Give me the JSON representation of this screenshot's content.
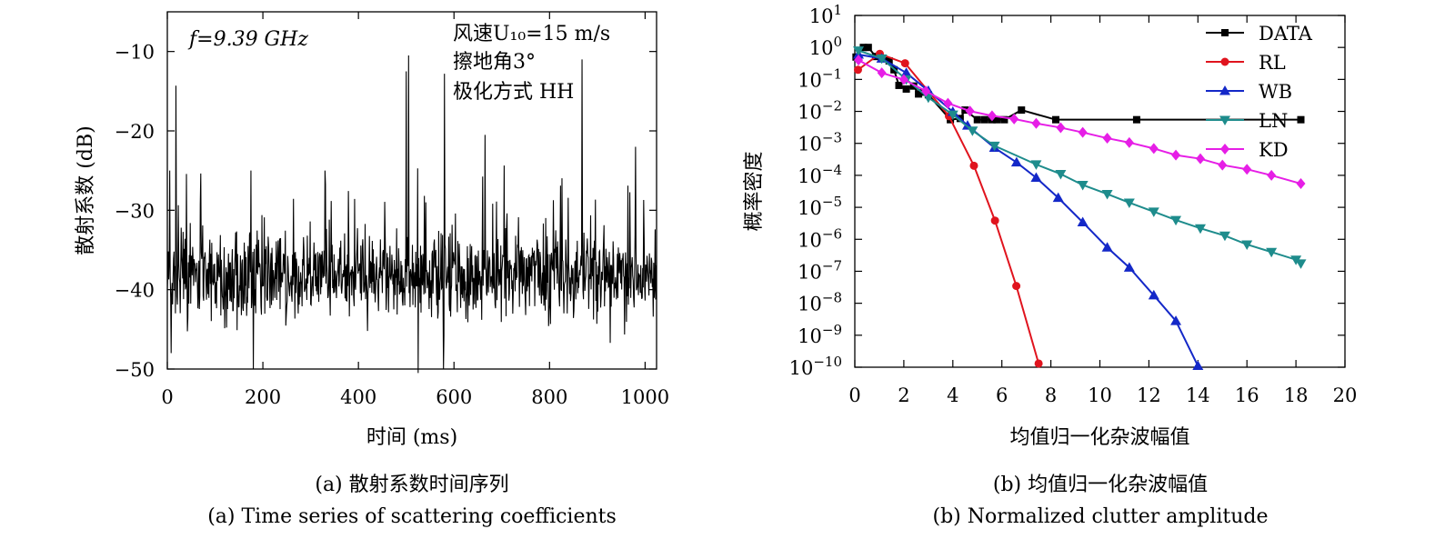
{
  "chart_data": [
    {
      "type": "line",
      "panel_caption_cn": "(a) 散射系数时间序列",
      "panel_caption_en": "(a) Time series of scattering coefficients",
      "xlabel": "时间 (ms)",
      "ylabel": "散射系数 (dB)",
      "xlim": [
        0,
        1024
      ],
      "ylim": [
        -50,
        -5
      ],
      "xticks": [
        0,
        200,
        400,
        600,
        800,
        1000
      ],
      "yticks": [
        -10,
        -20,
        -30,
        -40,
        -50
      ],
      "ytick_labels": [
        "−10",
        "−20",
        "−30",
        "−40",
        "−50"
      ],
      "annotations": {
        "freq": "f=9.39 GHz",
        "wind": "风速U₁₀=15 m/s",
        "angle": "擦地角3°",
        "pol": "极化方式 HH"
      },
      "series": [
        {
          "color": "#000000",
          "n_samples": 1024,
          "baseline_db": -38.5,
          "typical_range_db": [
            -46,
            -30
          ],
          "peaks": [
            {
              "x": 5,
              "y": -25
            },
            {
              "x": 18,
              "y": -14.3
            },
            {
              "x": 175,
              "y": -25
            },
            {
              "x": 330,
              "y": -25
            },
            {
              "x": 500,
              "y": -12.5
            },
            {
              "x": 505,
              "y": -10.5
            },
            {
              "x": 580,
              "y": -12.8
            },
            {
              "x": 665,
              "y": -20.5
            },
            {
              "x": 868,
              "y": -11
            },
            {
              "x": 980,
              "y": -22
            }
          ],
          "troughs": [
            {
              "x": 8,
              "y": -48
            },
            {
              "x": 180,
              "y": -50
            },
            {
              "x": 525,
              "y": -50.5
            },
            {
              "x": 578,
              "y": -50
            }
          ]
        }
      ]
    },
    {
      "type": "line",
      "log_y": true,
      "panel_caption_cn": "(b) 均值归一化杂波幅值",
      "panel_caption_en": "(b) Normalized clutter amplitude",
      "xlabel": "均值归一化杂波幅值",
      "ylabel": "概率密度",
      "xlim": [
        0,
        20
      ],
      "ylim_exp": [
        -10,
        1
      ],
      "xticks": [
        0,
        2,
        4,
        6,
        8,
        10,
        12,
        14,
        16,
        18,
        20
      ],
      "ytick_exponents": [
        1,
        0,
        -1,
        -2,
        -3,
        -4,
        -5,
        -6,
        -7,
        -8,
        -9,
        -10
      ],
      "legend_position": "top-right",
      "series": [
        {
          "name": "DATA",
          "color": "#000000",
          "marker": "square",
          "points": [
            [
              0.05,
              0.5
            ],
            [
              0.35,
              1.0
            ],
            [
              0.55,
              1.0
            ],
            [
              0.85,
              0.52
            ],
            [
              1.1,
              0.45
            ],
            [
              1.4,
              0.38
            ],
            [
              1.6,
              0.2
            ],
            [
              1.8,
              0.065
            ],
            [
              2.1,
              0.05
            ],
            [
              2.4,
              0.062
            ],
            [
              2.6,
              0.035
            ],
            [
              2.8,
              0.04
            ],
            [
              3.0,
              0.033
            ],
            [
              3.9,
              0.0055
            ],
            [
              4.3,
              0.006
            ],
            [
              4.5,
              0.011
            ],
            [
              5.0,
              0.0055
            ],
            [
              5.3,
              0.0055
            ],
            [
              5.6,
              0.0055
            ],
            [
              5.8,
              0.0055
            ],
            [
              6.1,
              0.0055
            ],
            [
              6.8,
              0.011
            ],
            [
              8.2,
              0.0055
            ],
            [
              11.5,
              0.0055
            ],
            [
              18.2,
              0.0055
            ]
          ]
        },
        {
          "name": "RL",
          "color": "#e0141e",
          "marker": "circle",
          "points": [
            [
              0.13,
              0.2
            ],
            [
              1.02,
              0.63
            ],
            [
              2.05,
              0.32
            ],
            [
              3.84,
              0.0071
            ],
            [
              4.86,
              0.0002
            ],
            [
              5.72,
              3.84e-06
            ],
            [
              6.59,
              3.47e-08
            ],
            [
              7.5,
              1.3e-10
            ]
          ]
        },
        {
          "name": "WB",
          "color": "#1428c8",
          "marker": "triangle-up",
          "points": [
            [
              0.15,
              0.6
            ],
            [
              1.1,
              0.45
            ],
            [
              2.1,
              0.16
            ],
            [
              3.0,
              0.044
            ],
            [
              4.0,
              0.0097
            ],
            [
              4.6,
              0.0036
            ],
            [
              5.7,
              0.00073
            ],
            [
              6.6,
              0.000254
            ],
            [
              7.4,
              8.44e-05
            ],
            [
              8.3,
              1.98e-05
            ],
            [
              9.3,
              3.42e-06
            ],
            [
              10.3,
              5.56e-07
            ],
            [
              11.2,
              1.31e-07
            ],
            [
              12.2,
              1.77e-08
            ],
            [
              13.1,
              2.8e-09
            ],
            [
              14.0,
              1.1e-10
            ]
          ]
        },
        {
          "name": "LN",
          "color": "#1e8c8c",
          "marker": "triangle-down",
          "points": [
            [
              0.15,
              0.8
            ],
            [
              1.1,
              0.45
            ],
            [
              2.1,
              0.1
            ],
            [
              3.0,
              0.027
            ],
            [
              4.0,
              0.0079
            ],
            [
              4.8,
              0.0025
            ],
            [
              5.7,
              0.00084
            ],
            [
              7.4,
              0.00022
            ],
            [
              8.4,
              0.00011
            ],
            [
              9.3,
              5e-05
            ],
            [
              10.3,
              2.6e-05
            ],
            [
              11.2,
              1.4e-05
            ],
            [
              12.2,
              7.3e-06
            ],
            [
              13.1,
              4e-06
            ],
            [
              14.1,
              2.2e-06
            ],
            [
              15.1,
              1.3e-06
            ],
            [
              16.0,
              6.9e-07
            ],
            [
              17.0,
              4e-07
            ],
            [
              18.0,
              2.3e-07
            ],
            [
              18.2,
              1.75e-07
            ]
          ]
        },
        {
          "name": "KD",
          "color": "#e61ee6",
          "marker": "diamond",
          "points": [
            [
              0.15,
              0.4
            ],
            [
              1.1,
              0.16
            ],
            [
              2.0,
              0.099
            ],
            [
              2.9,
              0.043
            ],
            [
              3.8,
              0.018
            ],
            [
              4.7,
              0.0102
            ],
            [
              5.6,
              0.0073
            ],
            [
              6.5,
              0.0058
            ],
            [
              7.4,
              0.0042
            ],
            [
              8.4,
              0.0031
            ],
            [
              9.3,
              0.0022
            ],
            [
              10.3,
              0.00145
            ],
            [
              11.2,
              0.00106
            ],
            [
              12.2,
              0.00069
            ],
            [
              13.1,
              0.00043
            ],
            [
              14.1,
              0.00033
            ],
            [
              15.0,
              0.00021
            ],
            [
              16.0,
              0.000155
            ],
            [
              17.0,
              0.0001
            ],
            [
              18.2,
              5.5e-05
            ]
          ]
        }
      ]
    }
  ]
}
